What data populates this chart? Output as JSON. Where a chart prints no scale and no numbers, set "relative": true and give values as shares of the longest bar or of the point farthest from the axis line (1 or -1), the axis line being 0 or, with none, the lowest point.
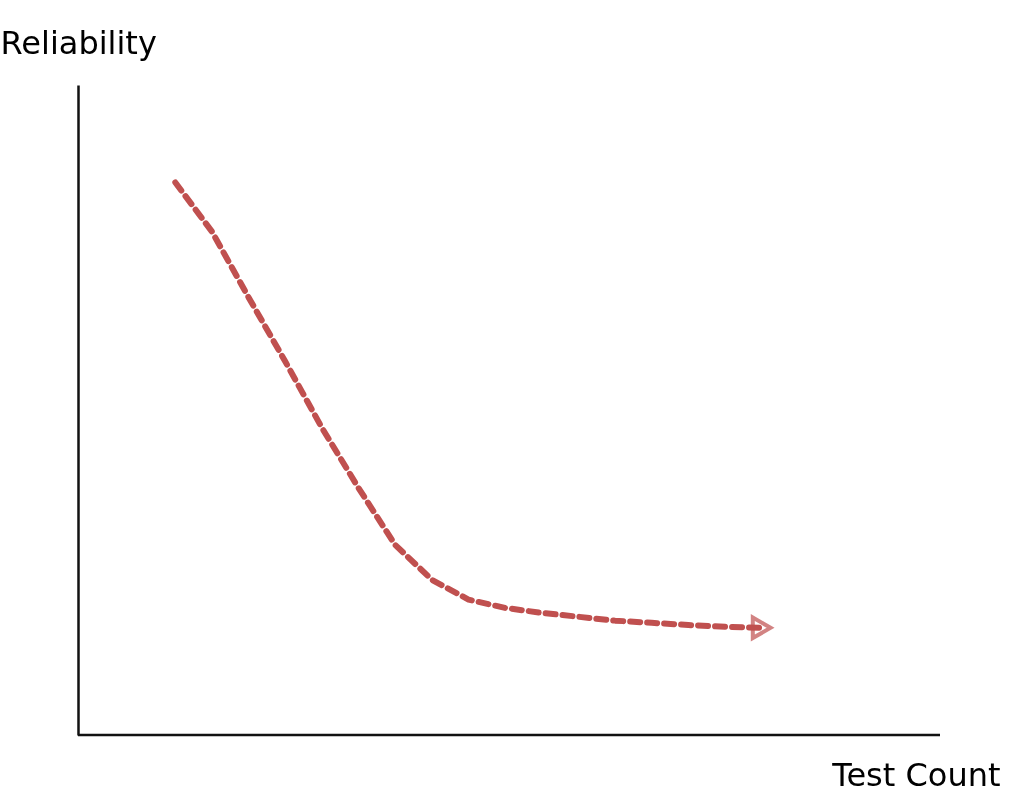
{
  "chart_data": {
    "type": "line",
    "relative": true,
    "xlabel": "Test Count",
    "ylabel": "Reliability",
    "categories": [
      null,
      null,
      null,
      null,
      null,
      null,
      null,
      null,
      null,
      null,
      null,
      null,
      null,
      null,
      null,
      null,
      null
    ],
    "series": [
      {
        "color": "#c0504f",
        "values": [
          1.0,
          0.911,
          0.792,
          0.676,
          0.556,
          0.447,
          0.344,
          0.281,
          0.245,
          0.23,
          0.221,
          0.214,
          0.207,
          0.203,
          0.199,
          0.196,
          0.194
        ]
      }
    ],
    "line_style": "dashed",
    "marker": "none",
    "grid": false
  }
}
